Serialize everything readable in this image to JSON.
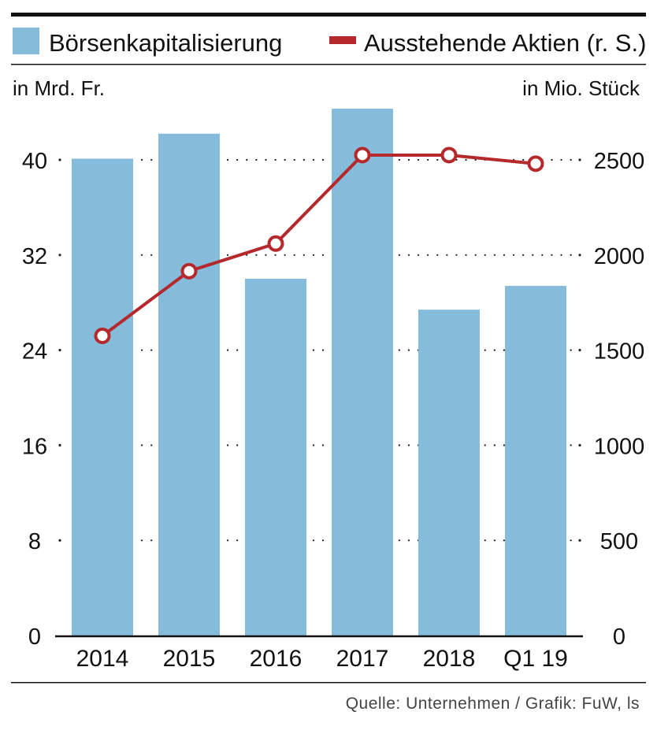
{
  "chart_data": {
    "type": "bar+line",
    "title": "",
    "categories": [
      "2014",
      "2015",
      "2016",
      "2017",
      "2018",
      "Q1 19"
    ],
    "series": [
      {
        "name": "Börsenkapitalisierung",
        "type": "bar",
        "axis": "left",
        "color": "#85bbdb",
        "values": [
          40.1,
          42.2,
          30.0,
          44.3,
          27.4,
          29.4
        ]
      },
      {
        "name": "Ausstehende Aktien (r. S.)",
        "type": "line",
        "axis": "right",
        "color": "#b5282c",
        "values": [
          1575,
          1915,
          2060,
          2525,
          2525,
          2480
        ]
      }
    ],
    "ylabel_left": "in Mrd. Fr.",
    "ylabel_right": "in Mio. Stück",
    "ylim_left": [
      0,
      48
    ],
    "ylim_right": [
      0,
      3000
    ],
    "yticks_left": [
      "0",
      "8",
      "16",
      "24",
      "32",
      "40"
    ],
    "yticks_right": [
      "0",
      "500",
      "1000",
      "1500",
      "2000",
      "2500"
    ],
    "grid": "dotted",
    "legend_position": "top"
  },
  "footer": {
    "source": "Quelle: Unternehmen / Grafik: FuW, ls"
  }
}
